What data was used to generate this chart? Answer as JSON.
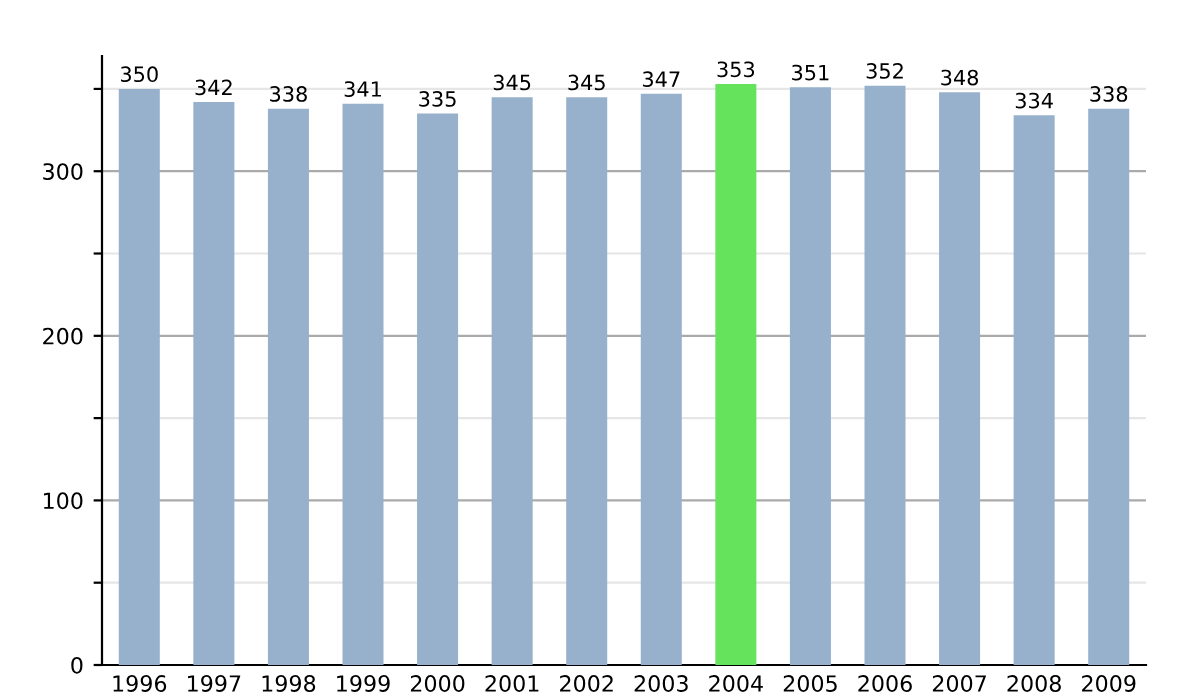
{
  "chart_data": {
    "type": "bar",
    "categories": [
      "1996",
      "1997",
      "1998",
      "1999",
      "2000",
      "2001",
      "2002",
      "2003",
      "2004",
      "2005",
      "2006",
      "2007",
      "2008",
      "2009"
    ],
    "values": [
      350,
      342,
      338,
      341,
      335,
      345,
      345,
      347,
      353,
      351,
      352,
      348,
      334,
      338
    ],
    "colors": [
      "#97b0cb",
      "#97b0cb",
      "#97b0cb",
      "#97b0cb",
      "#97b0cb",
      "#97b0cb",
      "#97b0cb",
      "#97b0cb",
      "#66e35c",
      "#97b0cb",
      "#97b0cb",
      "#97b0cb",
      "#97b0cb",
      "#97b0cb"
    ],
    "ylim": [
      0,
      370
    ],
    "yticks": [
      0,
      {
        "value": 50,
        "label": null
      },
      100,
      {
        "value": 150,
        "label": null
      },
      200,
      {
        "value": 250,
        "label": null
      },
      300,
      {
        "value": 350,
        "label": null
      }
    ],
    "grid": "y",
    "data_labels": true,
    "legend": false
  }
}
